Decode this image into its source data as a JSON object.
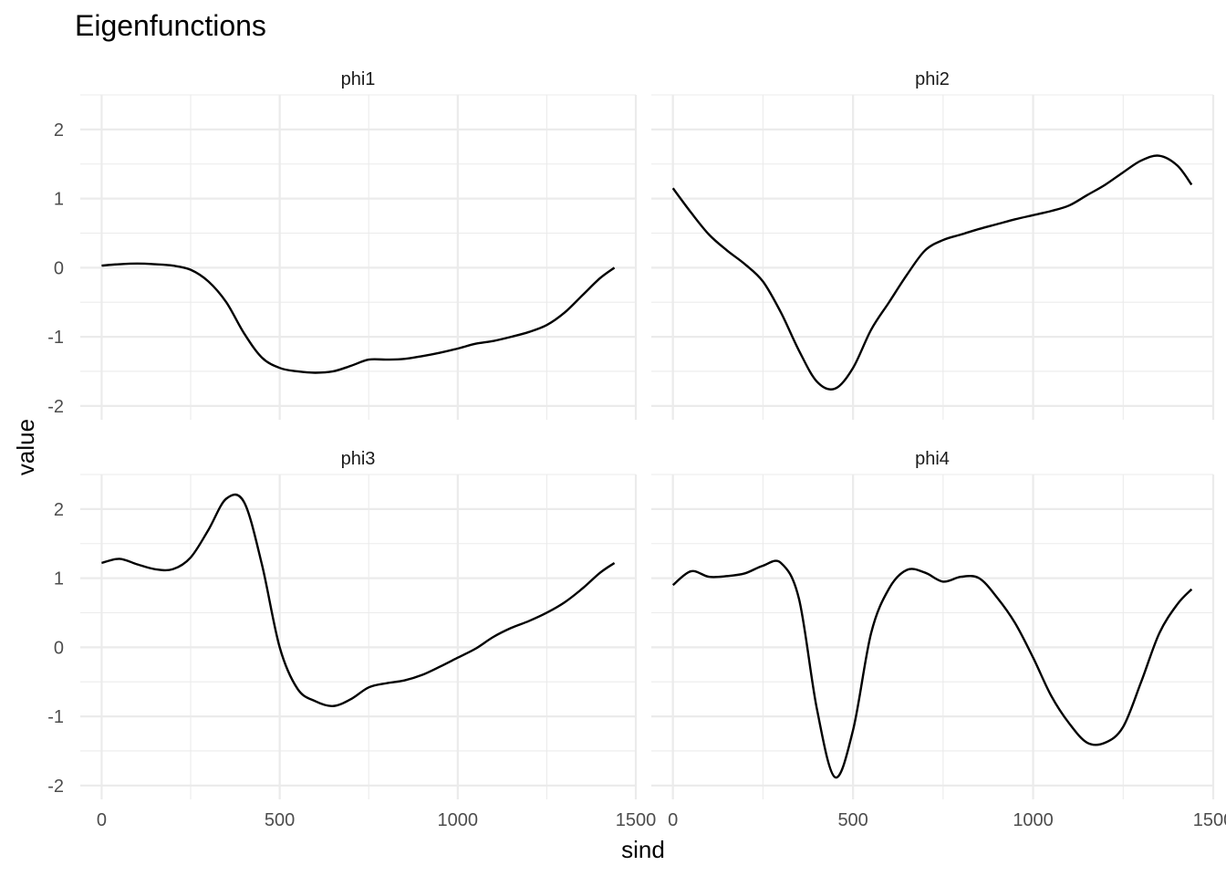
{
  "chart_data": {
    "type": "line",
    "title": "Eigenfunctions",
    "xlabel": "sind",
    "ylabel": "value",
    "xlim": [
      -60,
      1500
    ],
    "ylim": [
      -2.2,
      2.5
    ],
    "x_ticks": [
      0,
      500,
      1000,
      1500
    ],
    "x_tick_labels": [
      "0",
      "500",
      "1000",
      "1500"
    ],
    "y_ticks": [
      -2,
      -1,
      0,
      1,
      2
    ],
    "y_tick_labels": [
      "-2",
      "-1",
      "0",
      "1",
      "2"
    ],
    "grid": true,
    "line_color": "#000000",
    "panels": [
      {
        "label": "phi1",
        "x": [
          0,
          50,
          100,
          150,
          200,
          250,
          300,
          350,
          400,
          450,
          500,
          550,
          600,
          650,
          700,
          750,
          800,
          850,
          900,
          950,
          1000,
          1050,
          1100,
          1150,
          1200,
          1250,
          1300,
          1350,
          1400,
          1440
        ],
        "y": [
          0.03,
          0.05,
          0.06,
          0.05,
          0.03,
          -0.03,
          -0.2,
          -0.5,
          -0.95,
          -1.3,
          -1.45,
          -1.5,
          -1.52,
          -1.5,
          -1.42,
          -1.33,
          -1.33,
          -1.32,
          -1.28,
          -1.23,
          -1.17,
          -1.1,
          -1.06,
          -1.0,
          -0.93,
          -0.83,
          -0.65,
          -0.4,
          -0.15,
          0.0
        ]
      },
      {
        "label": "phi2",
        "x": [
          0,
          50,
          100,
          150,
          200,
          250,
          300,
          350,
          400,
          450,
          500,
          550,
          600,
          650,
          700,
          750,
          800,
          850,
          900,
          950,
          1000,
          1050,
          1100,
          1150,
          1200,
          1250,
          1300,
          1350,
          1400,
          1440
        ],
        "y": [
          1.15,
          0.8,
          0.48,
          0.25,
          0.05,
          -0.2,
          -0.65,
          -1.2,
          -1.65,
          -1.75,
          -1.45,
          -0.9,
          -0.5,
          -0.1,
          0.25,
          0.4,
          0.48,
          0.56,
          0.63,
          0.7,
          0.76,
          0.82,
          0.9,
          1.05,
          1.2,
          1.38,
          1.55,
          1.62,
          1.48,
          1.2
        ]
      },
      {
        "label": "phi3",
        "x": [
          0,
          50,
          100,
          150,
          200,
          250,
          300,
          350,
          400,
          450,
          500,
          550,
          600,
          650,
          700,
          750,
          800,
          850,
          900,
          950,
          1000,
          1050,
          1100,
          1150,
          1200,
          1250,
          1300,
          1350,
          1400,
          1440
        ],
        "y": [
          1.22,
          1.28,
          1.2,
          1.13,
          1.13,
          1.3,
          1.7,
          2.15,
          2.1,
          1.2,
          0.0,
          -0.6,
          -0.78,
          -0.85,
          -0.75,
          -0.58,
          -0.52,
          -0.48,
          -0.4,
          -0.28,
          -0.15,
          -0.02,
          0.15,
          0.28,
          0.38,
          0.5,
          0.65,
          0.85,
          1.08,
          1.22
        ]
      },
      {
        "label": "phi4",
        "x": [
          0,
          50,
          100,
          150,
          200,
          250,
          300,
          350,
          400,
          450,
          500,
          550,
          600,
          650,
          700,
          750,
          800,
          850,
          900,
          950,
          1000,
          1050,
          1100,
          1150,
          1200,
          1250,
          1300,
          1350,
          1400,
          1440
        ],
        "y": [
          0.9,
          1.1,
          1.02,
          1.03,
          1.07,
          1.18,
          1.22,
          0.7,
          -0.9,
          -1.88,
          -1.2,
          0.2,
          0.85,
          1.12,
          1.08,
          0.95,
          1.02,
          1.0,
          0.72,
          0.35,
          -0.15,
          -0.7,
          -1.1,
          -1.38,
          -1.38,
          -1.15,
          -0.5,
          0.2,
          0.62,
          0.84
        ]
      }
    ]
  }
}
